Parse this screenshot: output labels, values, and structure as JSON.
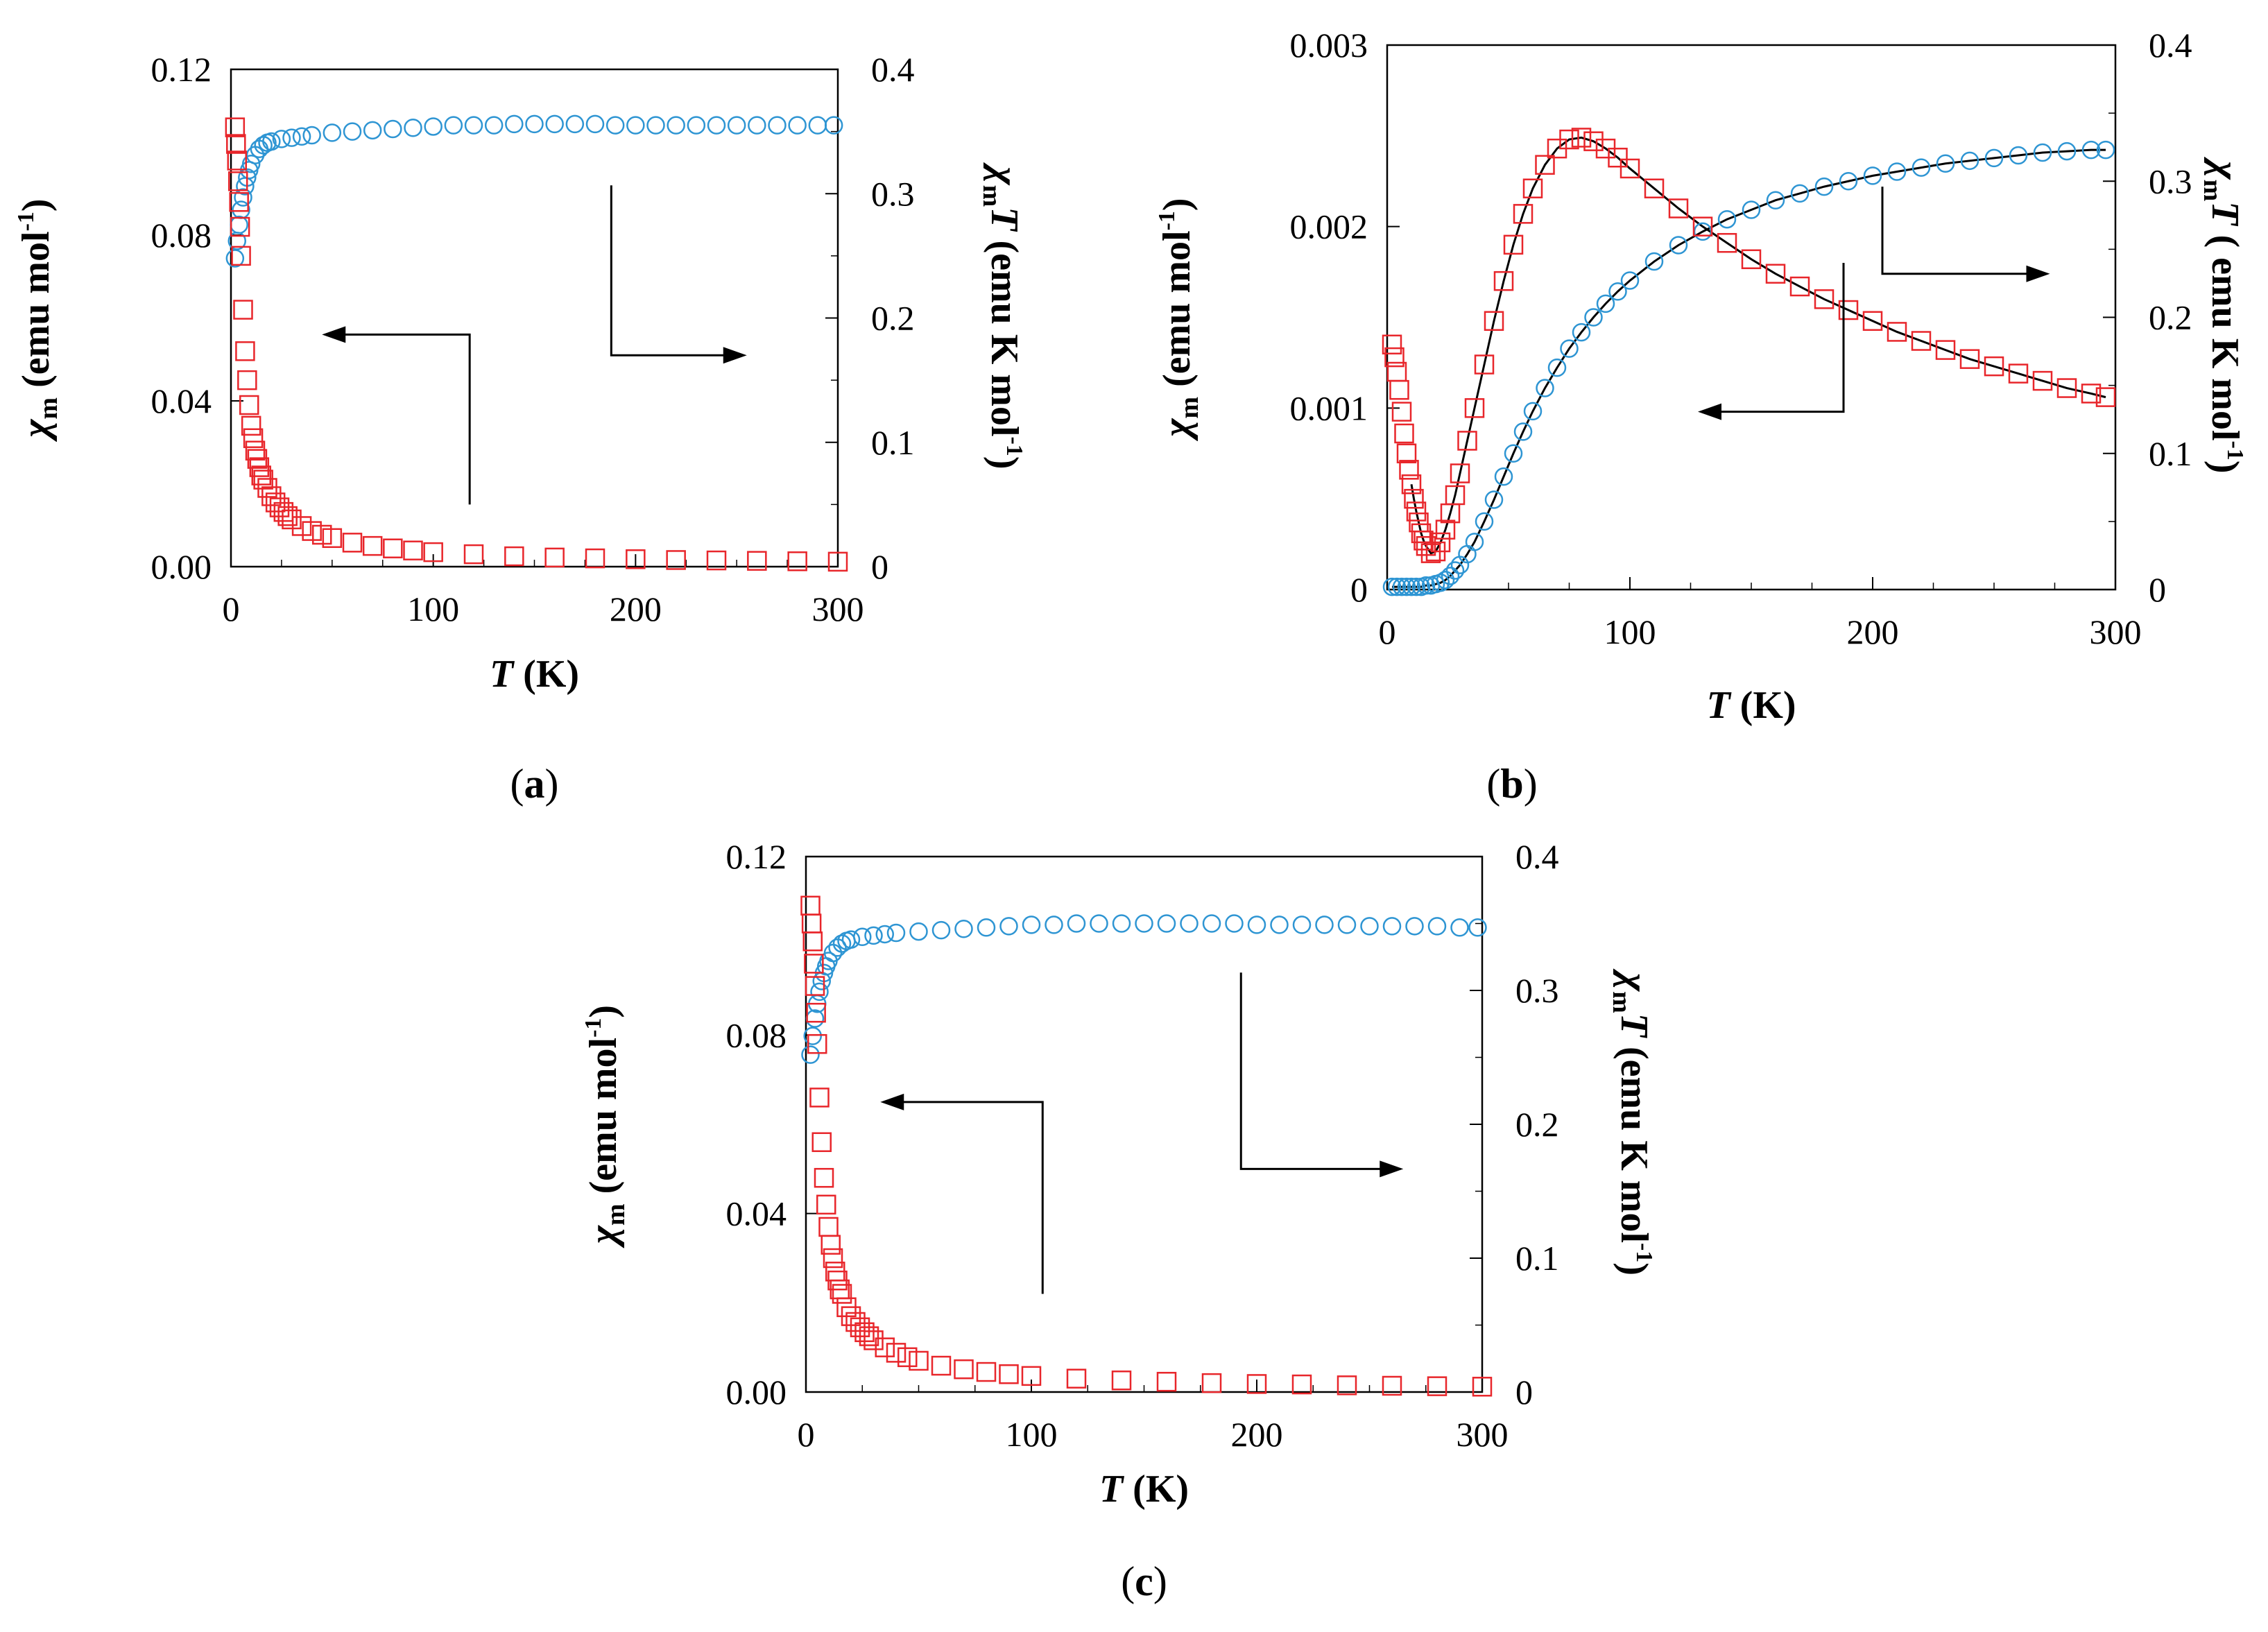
{
  "figure": {
    "panel_count": 3
  },
  "chart_data": [
    {
      "panel": "a",
      "panel_label_text": "(a)",
      "panel_label_letter": "a",
      "type": "scatter",
      "xlabel_symbol": "T",
      "xlabel_unit": " (K)",
      "xlim": [
        0,
        300
      ],
      "ylim_left": [
        0,
        0.12
      ],
      "ylim_right": [
        0,
        0.4
      ],
      "x_ticks": [
        0,
        100,
        200,
        300
      ],
      "y_left_ticks": [
        "0.00",
        "0.04",
        "0.08",
        "0.12"
      ],
      "y_right_ticks": [
        "0",
        "0.1",
        "0.2",
        "0.3",
        "0.4"
      ],
      "ylabel_left": {
        "symbol": "χ",
        "sub": "m",
        "text": " (emu mol",
        "sup": "-1",
        "close": ")"
      },
      "ylabel_right": {
        "symbol": "χ",
        "sub": "m",
        "mid": "T",
        "text": " (emu K mol",
        "sup": "-1",
        "close": ")"
      },
      "fit_line": false,
      "series": [
        {
          "name": "χmT",
          "axis": "right",
          "marker": "circle",
          "color": "#2e95d3",
          "x": [
            2,
            3,
            4,
            5,
            6,
            7,
            8,
            9,
            10,
            12,
            14,
            16,
            18,
            20,
            25,
            30,
            35,
            40,
            50,
            60,
            70,
            80,
            90,
            100,
            110,
            120,
            130,
            140,
            150,
            160,
            170,
            180,
            190,
            200,
            210,
            220,
            230,
            240,
            250,
            260,
            270,
            280,
            290,
            298
          ],
          "y": [
            0.248,
            0.262,
            0.275,
            0.287,
            0.297,
            0.306,
            0.313,
            0.319,
            0.324,
            0.331,
            0.336,
            0.339,
            0.341,
            0.342,
            0.344,
            0.345,
            0.346,
            0.347,
            0.349,
            0.35,
            0.351,
            0.352,
            0.353,
            0.354,
            0.355,
            0.355,
            0.355,
            0.356,
            0.356,
            0.356,
            0.356,
            0.356,
            0.355,
            0.355,
            0.355,
            0.355,
            0.355,
            0.355,
            0.355,
            0.355,
            0.355,
            0.355,
            0.355,
            0.355
          ]
        },
        {
          "name": "χm",
          "axis": "left",
          "marker": "square",
          "color": "#e8262b",
          "x": [
            2,
            2.5,
            3,
            3.5,
            4,
            4.5,
            5,
            6,
            7,
            8,
            9,
            10,
            11,
            12,
            13,
            14,
            15,
            16,
            18,
            20,
            22,
            24,
            26,
            28,
            30,
            35,
            40,
            45,
            50,
            60,
            70,
            80,
            90,
            100,
            120,
            140,
            160,
            180,
            200,
            220,
            240,
            260,
            280,
            300
          ],
          "y": [
            0.106,
            0.102,
            0.098,
            0.093,
            0.088,
            0.082,
            0.075,
            0.062,
            0.052,
            0.045,
            0.039,
            0.034,
            0.031,
            0.028,
            0.026,
            0.024,
            0.022,
            0.021,
            0.019,
            0.017,
            0.0155,
            0.0143,
            0.0132,
            0.0122,
            0.0114,
            0.0098,
            0.0086,
            0.0077,
            0.0069,
            0.0058,
            0.005,
            0.0044,
            0.0039,
            0.0035,
            0.003,
            0.0025,
            0.0022,
            0.002,
            0.0018,
            0.0016,
            0.0015,
            0.0014,
            0.0013,
            0.0012
          ]
        }
      ],
      "arrows": [
        {
          "to": "left",
          "vertical_x": 118,
          "vertical_from_y": 0.015,
          "vertical_to_y": 0.056,
          "head_x": 45
        },
        {
          "to": "right",
          "vertical_x": 188,
          "vertical_from_y": 0.092,
          "vertical_to_y": 0.051,
          "head_x": 255
        }
      ]
    },
    {
      "panel": "b",
      "panel_label_text": "(b)",
      "panel_label_letter": "b",
      "type": "scatter",
      "xlabel_symbol": "T",
      "xlabel_unit": " (K)",
      "xlim": [
        0,
        300
      ],
      "ylim_left": [
        0,
        0.003
      ],
      "ylim_right": [
        0,
        0.4
      ],
      "x_ticks": [
        0,
        100,
        200,
        300
      ],
      "y_left_ticks": [
        "0",
        "0.001",
        "0.002",
        "0.003"
      ],
      "y_right_ticks": [
        "0",
        "0.1",
        "0.2",
        "0.3",
        "0.4"
      ],
      "ylabel_left": {
        "symbol": "χ",
        "sub": "m",
        "text": " (emu mol",
        "sup": "-1",
        "close": ")"
      },
      "ylabel_right": {
        "symbol": "χ",
        "sub": "m",
        "mid": "T",
        "text": " ( emu K mol",
        "sup": "-1",
        "close": ")"
      },
      "fit_line": true,
      "series": [
        {
          "name": "χmT",
          "axis": "right",
          "marker": "circle",
          "color": "#2e95d3",
          "x": [
            2,
            4,
            6,
            8,
            10,
            12,
            14,
            16,
            18,
            20,
            22,
            24,
            26,
            28,
            30,
            33,
            36,
            40,
            44,
            48,
            52,
            56,
            60,
            65,
            70,
            75,
            80,
            85,
            90,
            95,
            100,
            110,
            120,
            130,
            140,
            150,
            160,
            170,
            180,
            190,
            200,
            210,
            220,
            230,
            240,
            250,
            260,
            270,
            280,
            290,
            296
          ],
          "y": [
            0.002,
            0.002,
            0.002,
            0.002,
            0.002,
            0.002,
            0.002,
            0.003,
            0.003,
            0.004,
            0.005,
            0.007,
            0.01,
            0.014,
            0.018,
            0.026,
            0.035,
            0.05,
            0.066,
            0.083,
            0.1,
            0.116,
            0.131,
            0.148,
            0.163,
            0.177,
            0.189,
            0.2,
            0.21,
            0.219,
            0.227,
            0.241,
            0.253,
            0.263,
            0.272,
            0.279,
            0.286,
            0.291,
            0.296,
            0.3,
            0.304,
            0.307,
            0.31,
            0.313,
            0.315,
            0.317,
            0.319,
            0.321,
            0.322,
            0.323,
            0.323
          ]
        },
        {
          "name": "χm",
          "axis": "left",
          "marker": "square",
          "color": "#e8262b",
          "x": [
            2,
            3,
            4,
            5,
            6,
            7,
            8,
            9,
            10,
            11,
            12,
            13,
            14,
            15,
            16,
            18,
            20,
            22,
            24,
            26,
            28,
            30,
            33,
            36,
            40,
            44,
            48,
            52,
            56,
            60,
            65,
            70,
            75,
            80,
            85,
            90,
            95,
            100,
            110,
            120,
            130,
            140,
            150,
            160,
            170,
            180,
            190,
            200,
            210,
            220,
            230,
            240,
            250,
            260,
            270,
            280,
            290,
            296
          ],
          "y": [
            0.00135,
            0.00128,
            0.0012,
            0.0011,
            0.00098,
            0.00086,
            0.00075,
            0.00066,
            0.00058,
            0.0005,
            0.00043,
            0.00037,
            0.00031,
            0.00027,
            0.00024,
            0.0002,
            0.00021,
            0.00026,
            0.00033,
            0.00042,
            0.00052,
            0.00064,
            0.00082,
            0.001,
            0.00124,
            0.00148,
            0.0017,
            0.0019,
            0.00207,
            0.00221,
            0.00234,
            0.00243,
            0.00248,
            0.00249,
            0.00247,
            0.00243,
            0.00238,
            0.00232,
            0.00221,
            0.0021,
            0.002,
            0.00191,
            0.00182,
            0.00174,
            0.00167,
            0.0016,
            0.00154,
            0.00148,
            0.00142,
            0.00137,
            0.00132,
            0.00127,
            0.00123,
            0.00119,
            0.00115,
            0.00111,
            0.00108,
            0.00106
          ]
        }
      ],
      "arrows": [
        {
          "to": "left",
          "vertical_x": 188,
          "vertical_from_y": 0.0018,
          "vertical_to_y": 0.00098,
          "head_x": 128
        },
        {
          "to": "right",
          "vertical_x": 204,
          "vertical_from_y": 0.00222,
          "vertical_to_y": 0.00174,
          "head_x": 273
        }
      ]
    },
    {
      "panel": "c",
      "panel_label_text": "(c)",
      "panel_label_letter": "c",
      "type": "scatter",
      "xlabel_symbol": "T",
      "xlabel_unit": " (K)",
      "xlim": [
        0,
        300
      ],
      "ylim_left": [
        0,
        0.12
      ],
      "ylim_right": [
        0,
        0.4
      ],
      "x_ticks": [
        0,
        100,
        200,
        300
      ],
      "y_left_ticks": [
        "0.00",
        "0.04",
        "0.08",
        "0.12"
      ],
      "y_right_ticks": [
        "0",
        "0.1",
        "0.2",
        "0.3",
        "0.4"
      ],
      "ylabel_left": {
        "symbol": "χ",
        "sub": "m",
        "text": " (emu mol",
        "sup": "-1",
        "close": ")"
      },
      "ylabel_right": {
        "symbol": "χ",
        "sub": "m",
        "mid": "T",
        "text": " (emu K mol",
        "sup": "-1",
        "close": ")"
      },
      "fit_line": false,
      "series": [
        {
          "name": "χmT",
          "axis": "right",
          "marker": "circle",
          "color": "#2e95d3",
          "x": [
            2,
            3,
            4,
            5,
            6,
            7,
            8,
            9,
            10,
            12,
            14,
            16,
            18,
            20,
            25,
            30,
            35,
            40,
            50,
            60,
            70,
            80,
            90,
            100,
            110,
            120,
            130,
            140,
            150,
            160,
            170,
            180,
            190,
            200,
            210,
            220,
            230,
            240,
            250,
            260,
            270,
            280,
            290,
            298
          ],
          "y": [
            0.252,
            0.266,
            0.279,
            0.29,
            0.299,
            0.307,
            0.313,
            0.318,
            0.322,
            0.328,
            0.332,
            0.335,
            0.337,
            0.338,
            0.34,
            0.341,
            0.342,
            0.343,
            0.344,
            0.345,
            0.346,
            0.347,
            0.348,
            0.349,
            0.349,
            0.35,
            0.35,
            0.35,
            0.35,
            0.35,
            0.35,
            0.35,
            0.35,
            0.349,
            0.349,
            0.349,
            0.349,
            0.349,
            0.348,
            0.348,
            0.348,
            0.348,
            0.347,
            0.347
          ]
        },
        {
          "name": "χm",
          "axis": "left",
          "marker": "square",
          "color": "#e8262b",
          "x": [
            2,
            2.5,
            3,
            3.5,
            4,
            4.5,
            5,
            6,
            7,
            8,
            9,
            10,
            11,
            12,
            13,
            14,
            15,
            16,
            18,
            20,
            22,
            24,
            26,
            28,
            30,
            35,
            40,
            45,
            50,
            60,
            70,
            80,
            90,
            100,
            120,
            140,
            160,
            180,
            200,
            220,
            240,
            260,
            280,
            300
          ],
          "y": [
            0.109,
            0.105,
            0.101,
            0.096,
            0.091,
            0.085,
            0.078,
            0.066,
            0.056,
            0.048,
            0.042,
            0.037,
            0.033,
            0.03,
            0.027,
            0.025,
            0.023,
            0.022,
            0.019,
            0.017,
            0.0157,
            0.0145,
            0.0134,
            0.0125,
            0.0116,
            0.01,
            0.0088,
            0.0078,
            0.007,
            0.0059,
            0.0051,
            0.0045,
            0.004,
            0.0036,
            0.003,
            0.0026,
            0.0023,
            0.002,
            0.0018,
            0.0017,
            0.0015,
            0.0014,
            0.0013,
            0.0012
          ]
        }
      ],
      "arrows": [
        {
          "to": "left",
          "vertical_x": 105,
          "vertical_from_y": 0.022,
          "vertical_to_y": 0.065,
          "head_x": 33
        },
        {
          "to": "right",
          "vertical_x": 193,
          "vertical_from_y": 0.094,
          "vertical_to_y": 0.05,
          "head_x": 265
        }
      ]
    }
  ]
}
